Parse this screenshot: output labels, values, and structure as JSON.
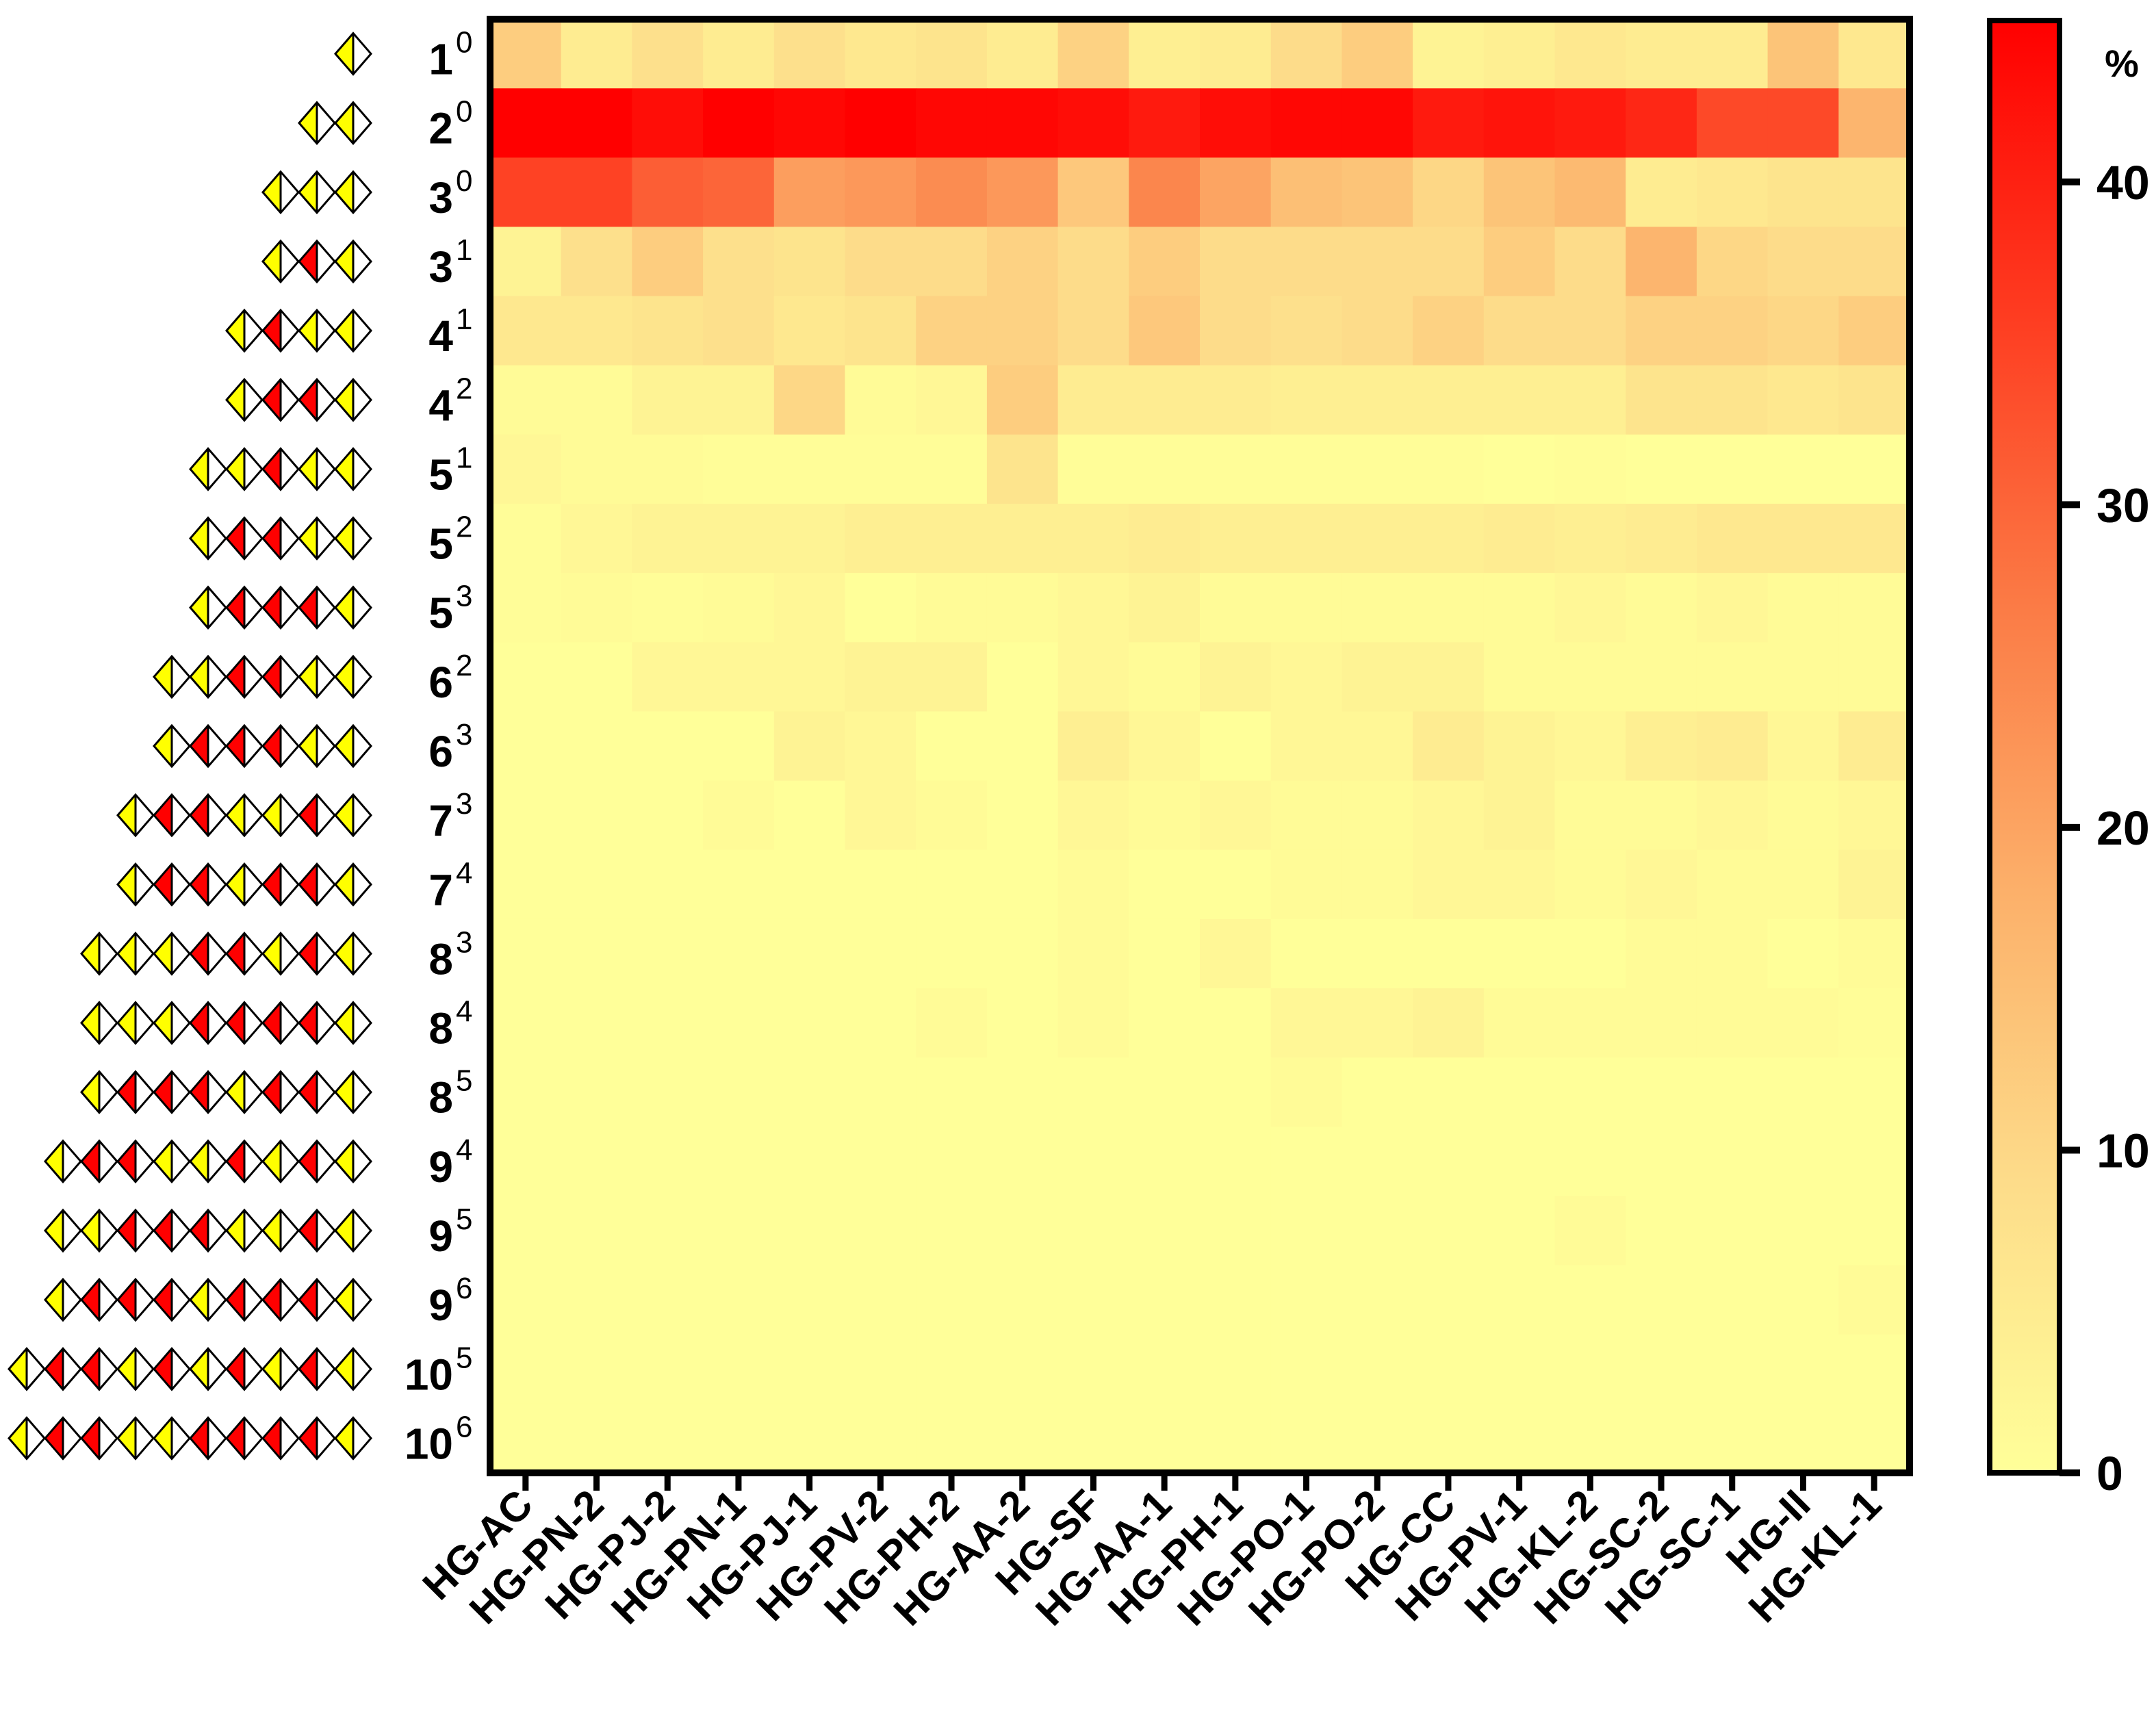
{
  "chart_data": {
    "type": "heatmap",
    "title": "",
    "xlabel": "",
    "ylabel": "",
    "colorbar": {
      "label": "%",
      "range": [
        0,
        45
      ],
      "ticks": [
        0,
        10,
        20,
        30,
        40
      ],
      "tick_labels": [
        "0",
        "10",
        "20",
        "30",
        "40"
      ],
      "colors": [
        "#ffff99",
        "#fddc8a",
        "#fcb06a",
        "#fb7a45",
        "#fe3b20",
        "#ff0000"
      ]
    },
    "grid": false,
    "columns": [
      "HG-AC",
      "HG-PN-2",
      "HG-PJ-2",
      "HG-PN-1",
      "HG-PJ-1",
      "HG-PV-2",
      "HG-PH-2",
      "HG-AA-2",
      "HG-SF",
      "HG-AA-1",
      "HG-PH-1",
      "HG-PO-1",
      "HG-PO-2",
      "HG-CC",
      "HG-PV-1",
      "HG-KL-2",
      "HG-SC-2",
      "HG-SC-1",
      "HG-II",
      "HG-KL-1"
    ],
    "rows": [
      {
        "base": "1",
        "sup": "0",
        "glycan": "Y"
      },
      {
        "base": "2",
        "sup": "0",
        "glycan": "YY"
      },
      {
        "base": "3",
        "sup": "0",
        "glycan": "YYY"
      },
      {
        "base": "3",
        "sup": "1",
        "glycan": "YRY"
      },
      {
        "base": "4",
        "sup": "1",
        "glycan": "YRYY"
      },
      {
        "base": "4",
        "sup": "2",
        "glycan": "YRRY"
      },
      {
        "base": "5",
        "sup": "1",
        "glycan": "YYRYY"
      },
      {
        "base": "5",
        "sup": "2",
        "glycan": "YRRYY"
      },
      {
        "base": "5",
        "sup": "3",
        "glycan": "YRRRY"
      },
      {
        "base": "6",
        "sup": "2",
        "glycan": "YYRRYY"
      },
      {
        "base": "6",
        "sup": "3",
        "glycan": "YRRRYY"
      },
      {
        "base": "7",
        "sup": "3",
        "glycan": "YRRYYRY"
      },
      {
        "base": "7",
        "sup": "4",
        "glycan": "YRRYRRY"
      },
      {
        "base": "8",
        "sup": "3",
        "glycan": "YYYRRYRY"
      },
      {
        "base": "8",
        "sup": "4",
        "glycan": "YYYRRRRY"
      },
      {
        "base": "8",
        "sup": "5",
        "glycan": "YRRRYRRY"
      },
      {
        "base": "9",
        "sup": "4",
        "glycan": "YRRYYRYRY"
      },
      {
        "base": "9",
        "sup": "5",
        "glycan": "YYRRRYYRY"
      },
      {
        "base": "9",
        "sup": "6",
        "glycan": "YRRRYRRRY"
      },
      {
        "base": "10",
        "sup": "5",
        "glycan": "YRRYRYRYRY"
      },
      {
        "base": "10",
        "sup": "6",
        "glycan": "YRRYYRRRRY"
      }
    ],
    "values": [
      [
        12,
        5,
        8,
        5,
        8,
        6,
        7,
        5,
        11,
        4,
        5,
        9,
        12,
        3,
        4,
        6,
        5,
        5,
        14,
        6
      ],
      [
        46,
        45,
        43,
        45,
        44,
        46,
        44,
        44,
        43,
        41,
        43,
        44,
        44,
        41,
        42,
        41,
        39,
        34,
        34,
        17
      ],
      [
        35,
        35,
        31,
        30,
        21,
        22,
        24,
        22,
        13,
        25,
        20,
        15,
        14,
        10,
        14,
        16,
        5,
        6,
        7,
        7
      ],
      [
        3,
        8,
        12,
        8,
        7,
        9,
        9,
        11,
        9,
        12,
        9,
        9,
        9,
        9,
        12,
        9,
        17,
        10,
        9,
        9
      ],
      [
        6,
        6,
        7,
        8,
        6,
        7,
        11,
        11,
        9,
        13,
        9,
        8,
        9,
        11,
        9,
        9,
        11,
        11,
        10,
        12
      ],
      [
        1,
        1,
        3,
        3,
        10,
        1,
        2,
        12,
        5,
        5,
        5,
        4,
        4,
        4,
        4,
        4,
        7,
        7,
        6,
        7
      ],
      [
        2,
        1,
        1,
        0.5,
        0.5,
        0.5,
        0.5,
        7,
        0.5,
        0.5,
        0.5,
        0.5,
        0.5,
        0.5,
        0,
        0.5,
        0,
        0,
        0,
        0
      ],
      [
        0.5,
        2,
        3,
        3,
        3,
        4,
        4,
        4,
        4,
        5,
        4,
        4,
        4,
        4,
        5,
        4,
        5,
        6,
        6,
        6
      ],
      [
        0.5,
        1,
        0.5,
        1,
        2,
        0,
        1,
        1,
        2,
        3,
        1,
        1,
        1,
        1,
        1,
        2,
        1,
        2,
        1,
        1
      ],
      [
        0,
        0,
        2,
        2,
        2,
        3,
        3,
        0,
        2,
        1,
        3,
        2,
        3,
        3,
        1,
        1,
        1,
        1,
        1,
        1
      ],
      [
        0,
        0,
        0,
        0,
        3,
        2,
        0,
        0,
        4,
        2,
        0,
        2,
        2,
        5,
        3,
        2,
        4,
        5,
        2,
        5
      ],
      [
        0,
        0,
        0,
        1,
        0,
        2,
        1,
        0,
        2,
        1,
        2,
        1,
        1,
        2,
        3,
        1,
        1,
        2,
        1,
        2
      ],
      [
        0,
        0,
        0,
        0,
        0,
        0,
        0,
        0,
        1,
        0,
        0,
        1,
        1,
        2,
        2,
        1,
        2,
        1,
        1,
        3
      ],
      [
        0,
        0,
        0,
        0,
        0,
        0,
        0,
        0,
        1,
        0,
        2,
        0,
        0,
        0,
        0,
        0,
        1,
        1,
        0,
        1
      ],
      [
        0,
        0,
        0,
        0,
        0,
        0,
        1,
        0,
        1,
        0,
        0,
        2,
        2,
        3,
        1,
        1,
        1,
        1,
        1,
        0.5
      ],
      [
        0,
        0,
        0,
        0,
        0,
        0,
        0,
        0,
        0,
        0,
        0,
        1,
        0,
        0,
        0,
        0,
        0,
        0,
        0,
        0
      ],
      [
        0,
        0,
        0,
        0,
        0,
        0,
        0,
        0,
        0,
        0,
        0,
        0,
        0,
        0,
        0,
        0,
        0,
        0,
        0,
        0
      ],
      [
        0,
        0,
        0,
        0,
        0,
        0,
        0,
        0,
        0,
        0,
        0,
        0,
        0,
        0,
        0,
        1,
        0,
        0,
        0,
        0
      ],
      [
        0,
        0,
        0,
        0,
        0,
        0,
        0,
        0,
        0,
        0,
        0,
        0,
        0,
        0,
        0,
        0,
        0,
        0,
        0,
        1
      ],
      [
        0,
        0,
        0,
        0,
        0,
        0,
        0,
        0,
        0,
        0,
        0,
        0,
        0,
        0,
        0,
        0,
        0,
        0,
        0,
        0
      ],
      [
        0,
        0,
        0,
        0,
        0,
        0,
        0,
        0,
        0,
        0,
        0,
        0,
        0,
        0,
        0,
        0,
        0,
        0,
        0,
        0
      ]
    ]
  }
}
